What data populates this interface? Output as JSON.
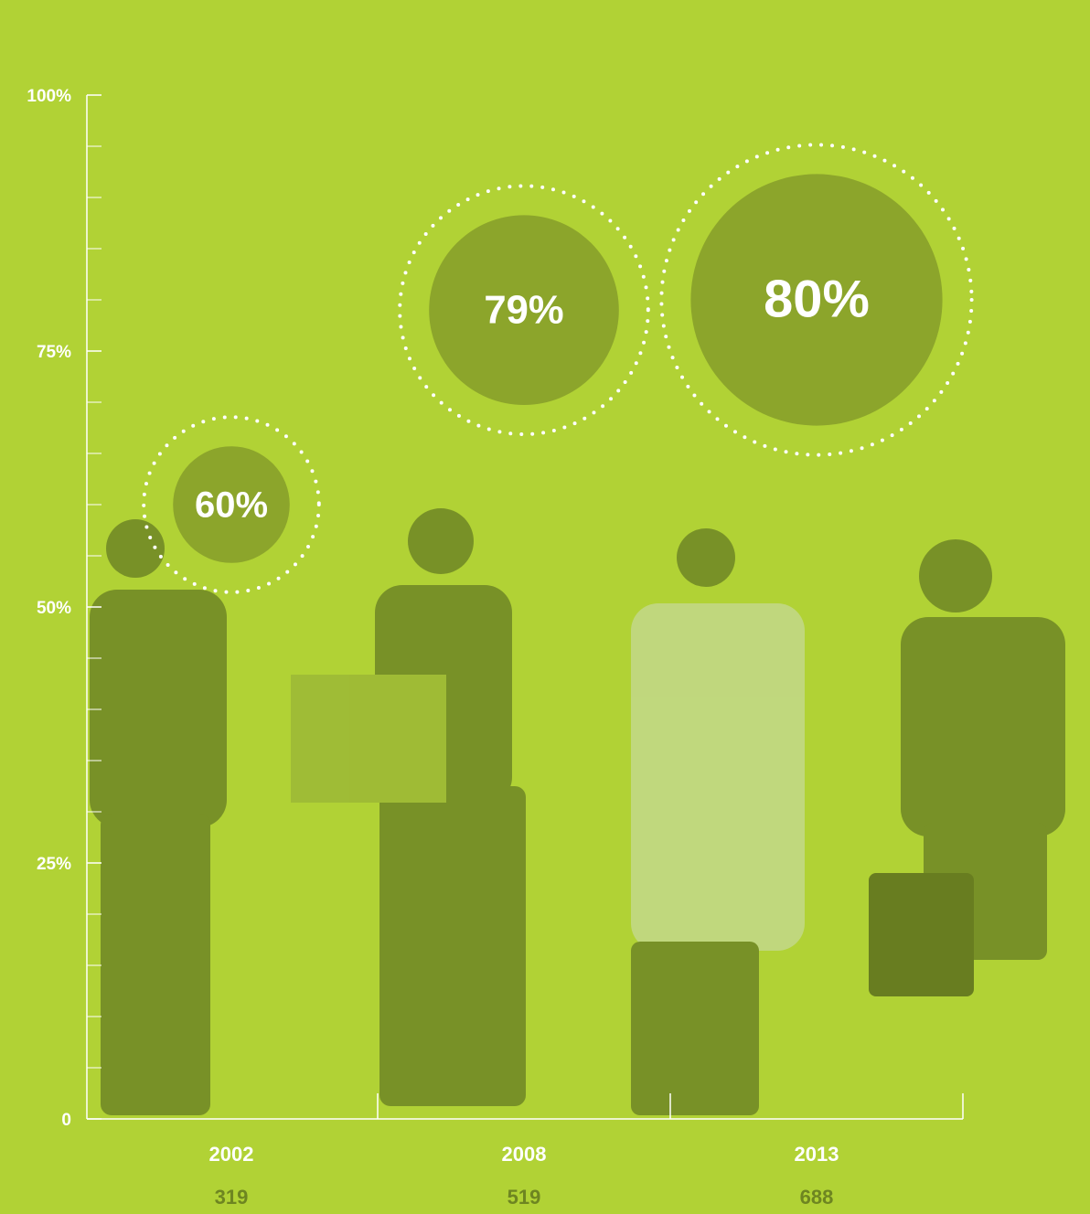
{
  "chart_data": {
    "type": "bubble",
    "categories": [
      "2002",
      "2008",
      "2013"
    ],
    "values": [
      60,
      79,
      80
    ],
    "value_labels": [
      "60%",
      "79%",
      "80%"
    ],
    "sizes": [
      319,
      519,
      688
    ],
    "color": "#8ca52b",
    "ylim": [
      0,
      100
    ],
    "yticks": [
      {
        "value": 0,
        "label": "0"
      },
      {
        "value": 25,
        "label": "25%"
      },
      {
        "value": 50,
        "label": "50%"
      },
      {
        "value": 75,
        "label": "75%"
      },
      {
        "value": 100,
        "label": "100%"
      }
    ]
  }
}
